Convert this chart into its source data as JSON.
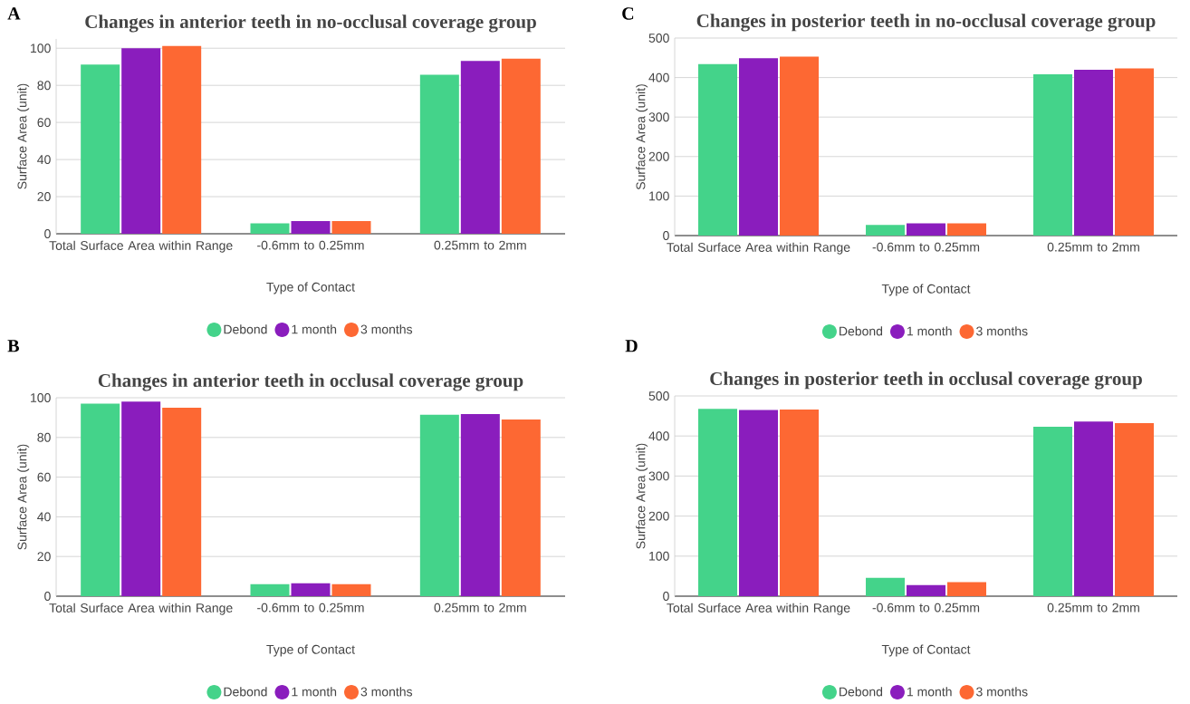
{
  "chart_data": [
    {
      "type": "bar",
      "title": "Changes in anterior teeth in no-occlusal coverage group",
      "xlabel": "Type of Contact",
      "ylabel": "Surface Area (unit)",
      "annotations": [
        "A"
      ],
      "categories": [
        "Total Surface Area within Range",
        "-0.6mm to 0.25mm",
        "0.25mm to 2mm"
      ],
      "series": [
        {
          "name": "Debond",
          "color": "#44d38a",
          "values": [
            91.2,
            5.6,
            85.7
          ]
        },
        {
          "name": "1 month",
          "color": "#8a1dbd",
          "values": [
            100,
            6.8,
            93.2
          ]
        },
        {
          "name": "3 months",
          "color": "#fd6833",
          "values": [
            101.2,
            6.8,
            94.4
          ]
        }
      ],
      "ylim": [
        0,
        105
      ],
      "yticks": [
        0,
        20,
        40,
        60,
        80,
        100
      ],
      "grid": "y",
      "legend": "bottom"
    },
    {
      "type": "bar",
      "title": "Changes in posterior teeth in no-occlusal coverage group",
      "xlabel": "Type of Contact",
      "ylabel": "Surface Area (unit)",
      "annotations": [
        "C"
      ],
      "categories": [
        "Total Surface Area within Range",
        "-0.6mm to 0.25mm",
        "0.25mm to 2mm"
      ],
      "series": [
        {
          "name": "Debond",
          "color": "#44d38a",
          "values": [
            434,
            27,
            408
          ]
        },
        {
          "name": "1 month",
          "color": "#8a1dbd",
          "values": [
            449,
            31,
            420
          ]
        },
        {
          "name": "3 months",
          "color": "#fd6833",
          "values": [
            453,
            31,
            423
          ]
        }
      ],
      "ylim": [
        0,
        500
      ],
      "yticks": [
        0,
        100,
        200,
        300,
        400,
        500
      ],
      "grid": "y",
      "legend": "bottom"
    },
    {
      "type": "bar",
      "title": "Changes in anterior teeth in occlusal coverage group",
      "xlabel": "Type of Contact",
      "ylabel": "Surface Area (unit)",
      "annotations": [
        "B"
      ],
      "categories": [
        "Total Surface Area within Range",
        "-0.6mm to 0.25mm",
        "0.25mm to 2mm"
      ],
      "series": [
        {
          "name": "Debond",
          "color": "#44d38a",
          "values": [
            97.0,
            6.0,
            91.4
          ]
        },
        {
          "name": "1 month",
          "color": "#8a1dbd",
          "values": [
            98.1,
            6.5,
            91.8
          ]
        },
        {
          "name": "3 months",
          "color": "#fd6833",
          "values": [
            95.0,
            6.0,
            89.0
          ]
        }
      ],
      "ylim": [
        0,
        100
      ],
      "yticks": [
        0,
        20,
        40,
        60,
        80,
        100
      ],
      "grid": "y",
      "legend": "bottom"
    },
    {
      "type": "bar",
      "title": "Changes in posterior teeth in occlusal coverage group",
      "xlabel": "Type of Contact",
      "ylabel": "Surface Area (unit)",
      "annotations": [
        "D"
      ],
      "categories": [
        "Total Surface Area within Range",
        "-0.6mm to 0.25mm",
        "0.25mm to 2mm"
      ],
      "series": [
        {
          "name": "Debond",
          "color": "#44d38a",
          "values": [
            468,
            46,
            423
          ]
        },
        {
          "name": "1 month",
          "color": "#8a1dbd",
          "values": [
            465,
            28,
            436
          ]
        },
        {
          "name": "3 months",
          "color": "#fd6833",
          "values": [
            466,
            35,
            432
          ]
        }
      ],
      "ylim": [
        0,
        500
      ],
      "yticks": [
        0,
        100,
        200,
        300,
        400,
        500
      ],
      "grid": "y",
      "legend": "bottom"
    }
  ]
}
